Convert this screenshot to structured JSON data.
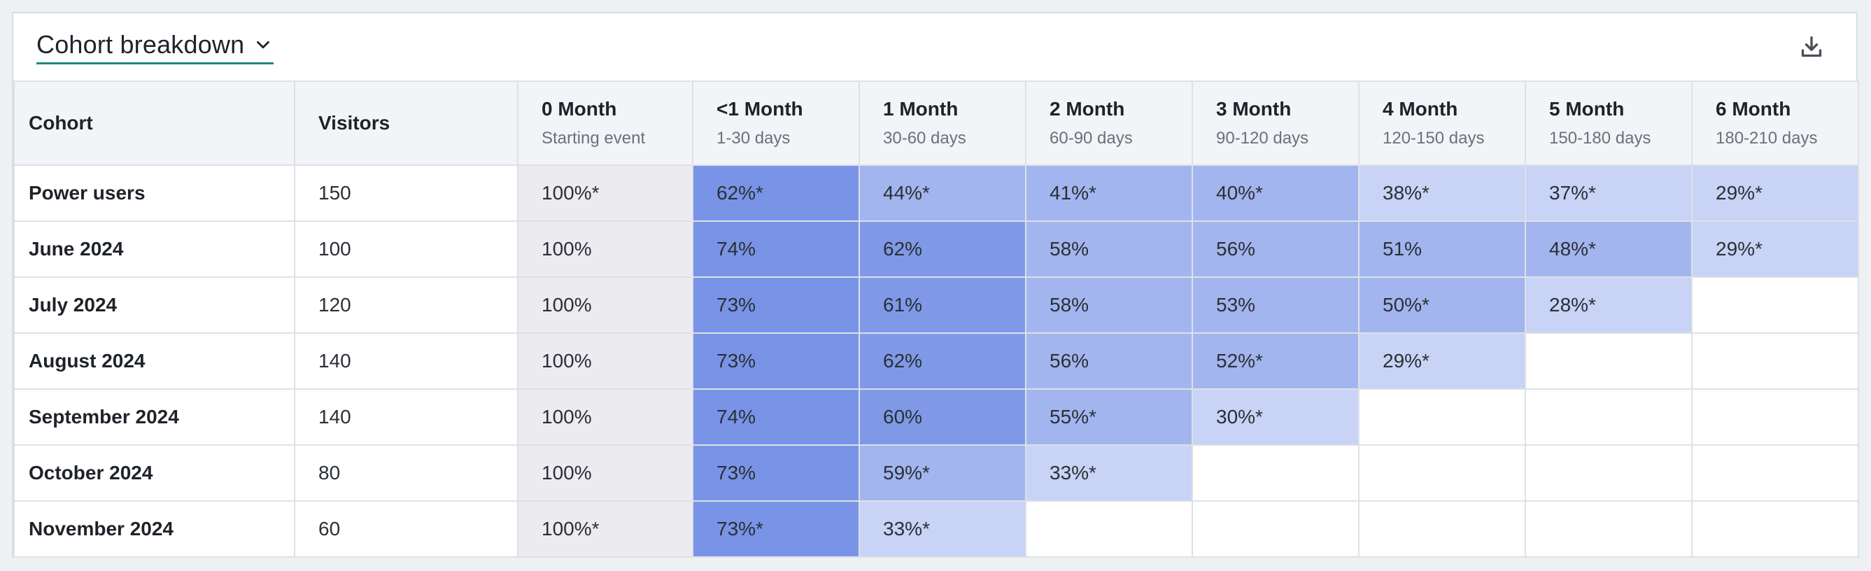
{
  "header": {
    "title": "Cohort breakdown",
    "title_icon": "chevron-down-icon",
    "download_icon": "download-icon"
  },
  "table": {
    "columns": [
      {
        "label": "Cohort",
        "sub": ""
      },
      {
        "label": "Visitors",
        "sub": ""
      },
      {
        "label": "0 Month",
        "sub": "Starting event"
      },
      {
        "label": "<1 Month",
        "sub": "1-30 days"
      },
      {
        "label": "1 Month",
        "sub": "30-60 days"
      },
      {
        "label": "2 Month",
        "sub": "60-90 days"
      },
      {
        "label": "3 Month",
        "sub": "90-120 days"
      },
      {
        "label": "4 Month",
        "sub": "120-150 days"
      },
      {
        "label": "5 Month",
        "sub": "150-180 days"
      },
      {
        "label": "6 Month",
        "sub": "180-210 days"
      }
    ],
    "rows": [
      {
        "cohort": "Power users",
        "visitors": "150",
        "cells": [
          "100%*",
          "62%*",
          "44%*",
          "41%*",
          "40%*",
          "38%*",
          "37%*",
          "29%*"
        ]
      },
      {
        "cohort": "June 2024",
        "visitors": "100",
        "cells": [
          "100%",
          "74%",
          "62%",
          "58%",
          "56%",
          "51%",
          "48%*",
          "29%*"
        ]
      },
      {
        "cohort": "July 2024",
        "visitors": "120",
        "cells": [
          "100%",
          "73%",
          "61%",
          "58%",
          "53%",
          "50%*",
          "28%*",
          ""
        ]
      },
      {
        "cohort": "August 2024",
        "visitors": "140",
        "cells": [
          "100%",
          "73%",
          "62%",
          "56%",
          "52%*",
          "29%*",
          "",
          ""
        ]
      },
      {
        "cohort": "September 2024",
        "visitors": "140",
        "cells": [
          "100%",
          "74%",
          "60%",
          "55%*",
          "30%*",
          "",
          "",
          ""
        ]
      },
      {
        "cohort": "October 2024",
        "visitors": "80",
        "cells": [
          "100%",
          "73%",
          "59%*",
          "33%*",
          "",
          "",
          "",
          ""
        ]
      },
      {
        "cohort": "November 2024",
        "visitors": "60",
        "cells": [
          "100%*",
          "73%*",
          "33%*",
          "",
          "",
          "",
          "",
          ""
        ]
      }
    ]
  },
  "colors": {
    "accent_underline": "#1f8a7a",
    "month0_bg": "#ebebf0",
    "heat_high": "#7994e6",
    "heat_mid_high": "#7f99e7",
    "heat_mid": "#a2b5ee",
    "heat_low": "#c8d3f5"
  }
}
